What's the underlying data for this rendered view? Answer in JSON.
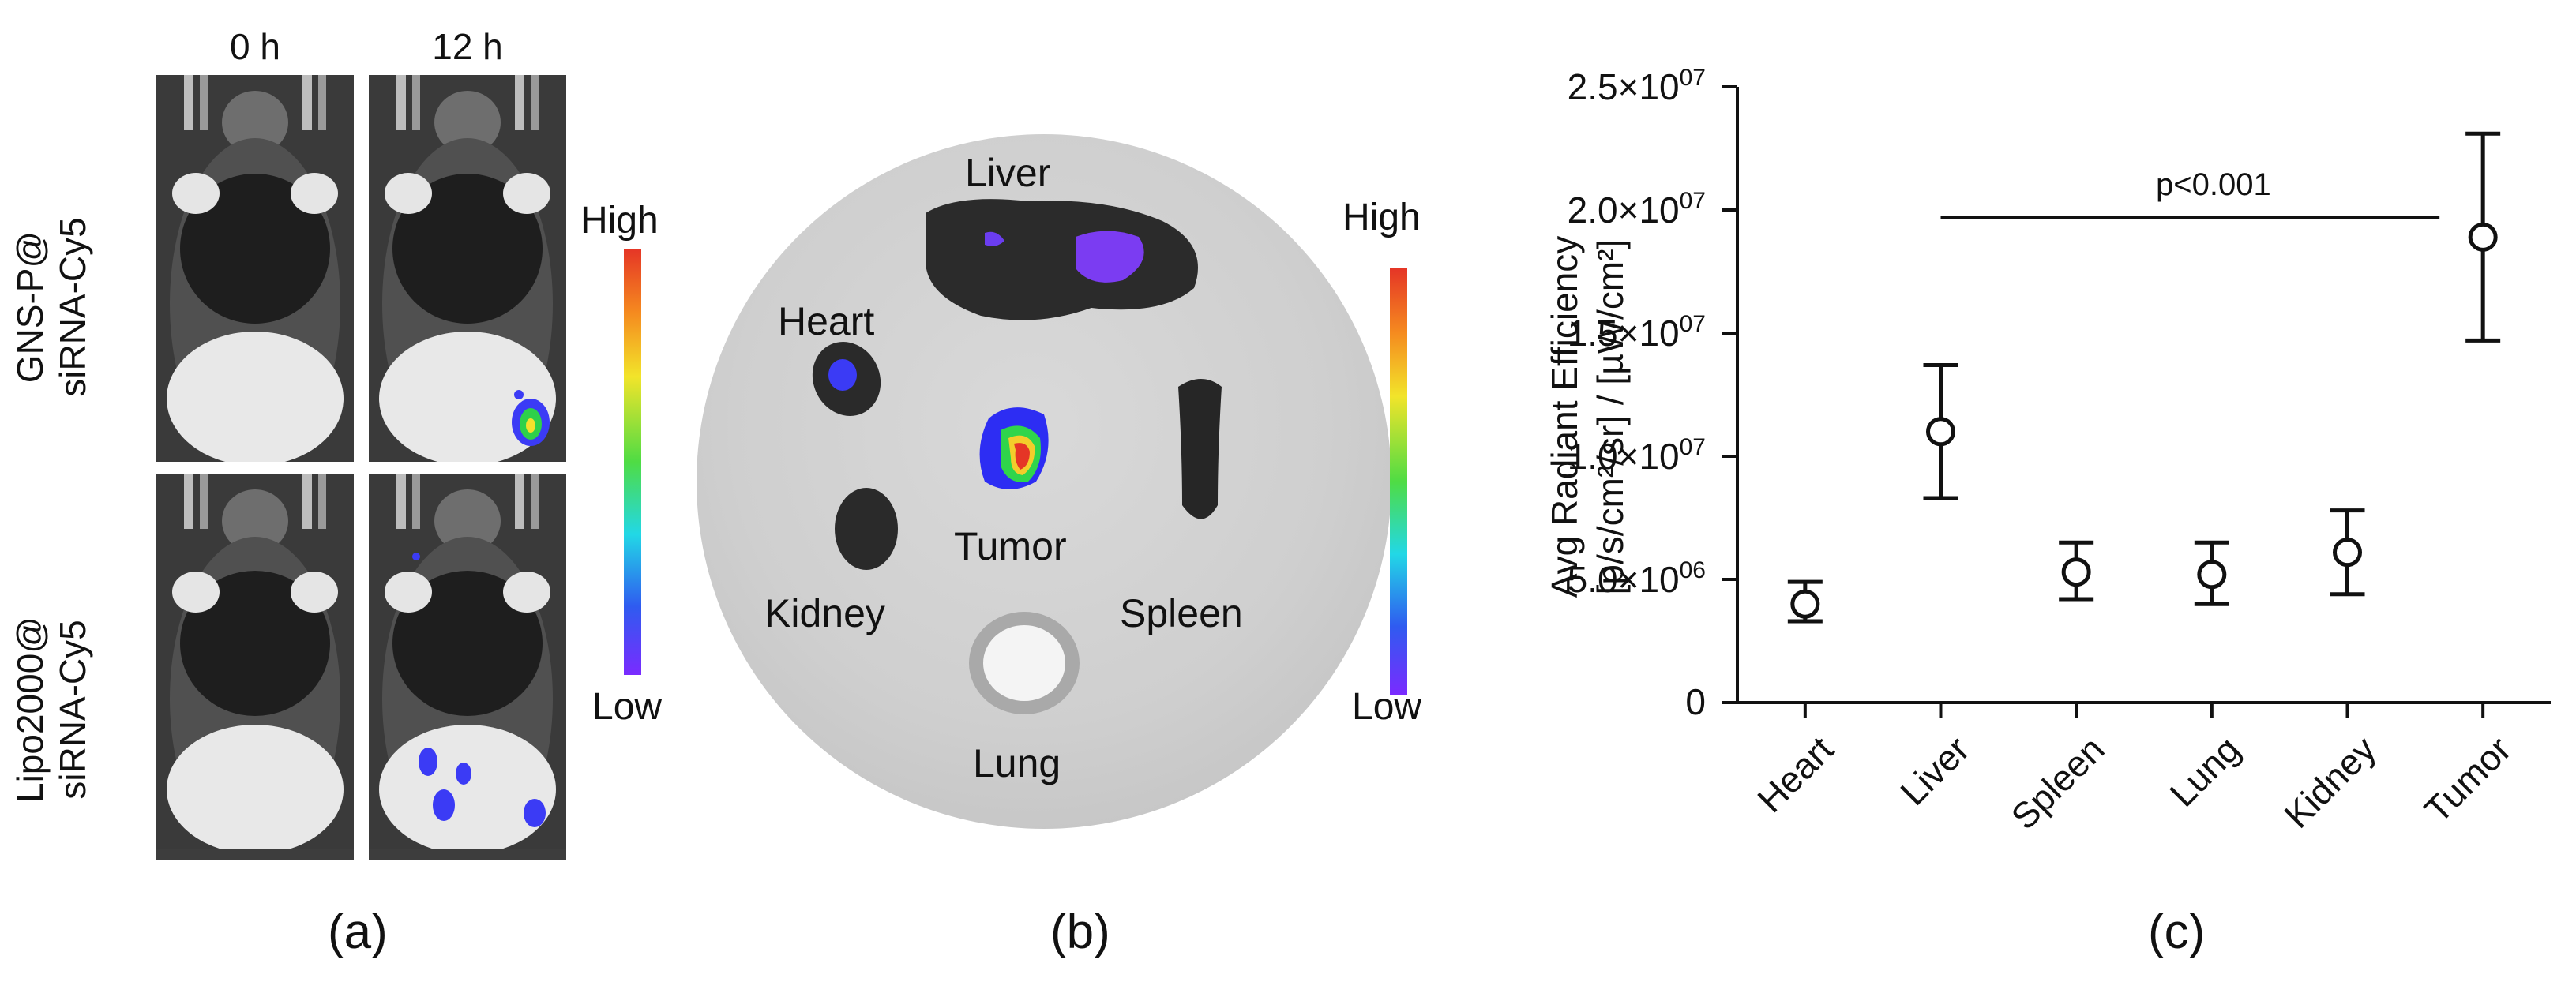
{
  "panel_a": {
    "col_heads": [
      "0 h",
      "12 h"
    ],
    "row_labels": [
      {
        "line1": "GNS-P@",
        "line2": "siRNA-Cy5"
      },
      {
        "line1": "Lipo2000@",
        "line2": "siRNA-Cy5"
      }
    ],
    "colorbar": {
      "high": "High",
      "low": "Low"
    },
    "tag": "(a)"
  },
  "panel_b": {
    "organs": [
      "Liver",
      "Heart",
      "Tumor",
      "Kidney",
      "Spleen",
      "Lung"
    ],
    "colorbar": {
      "high": "High",
      "low": "Low"
    },
    "tag": "(b)"
  },
  "panel_c": {
    "tag": "(c)",
    "ylabel_line1": "Avg Radiant Efficiency",
    "ylabel_line2": "[p/s/cm²/sr] / [µW/cm²]",
    "significance": "p<0.001",
    "ytick_labels": [
      {
        "mant": "0",
        "exp": ""
      },
      {
        "mant": "5.0×10",
        "exp": "06"
      },
      {
        "mant": "1.0×10",
        "exp": "07"
      },
      {
        "mant": "1.5×10",
        "exp": "07"
      },
      {
        "mant": "2.0×10",
        "exp": "07"
      },
      {
        "mant": "2.5×10",
        "exp": "07"
      }
    ]
  },
  "chart_data": {
    "type": "scatter",
    "categories": [
      "Heart",
      "Liver",
      "Spleen",
      "Lung",
      "Kidney",
      "Tumor"
    ],
    "values": [
      4000000,
      11000000,
      5300000,
      5200000,
      6100000,
      18900000
    ],
    "error_low": [
      3300000,
      8300000,
      4200000,
      4000000,
      4400000,
      14700000
    ],
    "error_high": [
      4900000,
      13700000,
      6500000,
      6500000,
      7800000,
      23100000
    ],
    "ylim": [
      0,
      25000000
    ],
    "yticks": [
      0,
      5000000,
      10000000,
      15000000,
      20000000,
      25000000
    ],
    "ylabel": "Avg Radiant Efficiency [p/s/cm²/sr] / [µW/cm²]",
    "xlabel": "",
    "significance": {
      "from": "Liver",
      "to": "Tumor",
      "y": 19700000,
      "label": "p<0.001"
    },
    "grid": false,
    "marker": "open-circle",
    "color": "#111111"
  }
}
